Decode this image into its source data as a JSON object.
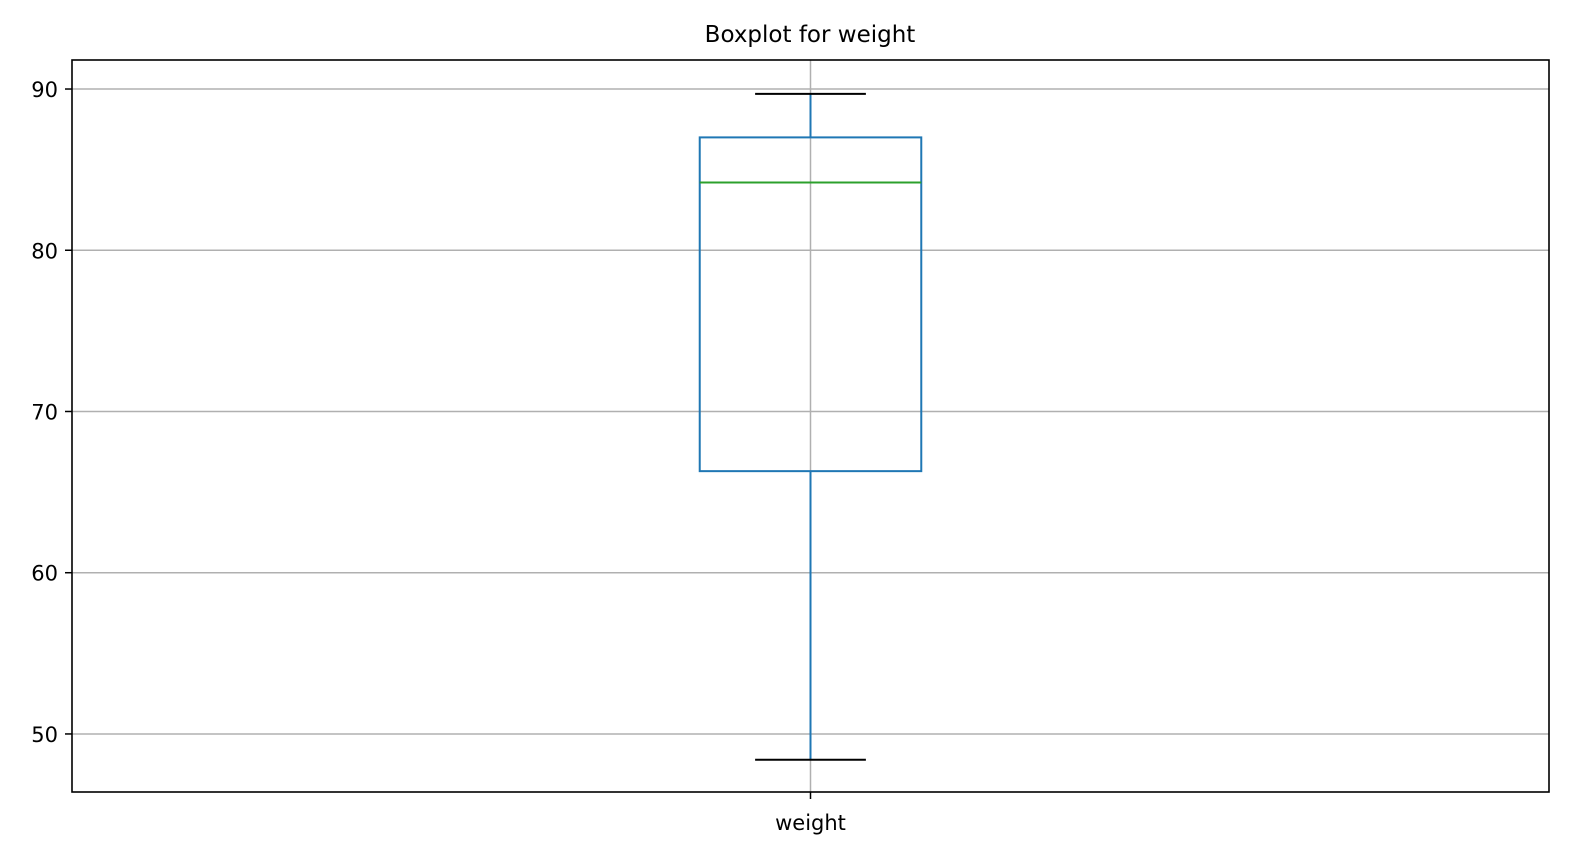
{
  "chart_data": {
    "type": "boxplot",
    "title": "Boxplot for weight",
    "xlabel": "",
    "ylabel": "",
    "categories": [
      "weight"
    ],
    "boxes": [
      {
        "category": "weight",
        "whisker_low": 48.4,
        "q1": 66.3,
        "median": 84.2,
        "q3": 87.0,
        "whisker_high": 89.7
      }
    ],
    "ylim": [
      46.4,
      91.8
    ],
    "yticks": [
      50,
      60,
      70,
      80,
      90
    ],
    "grid": true,
    "colors": {
      "box": "#1f77b4",
      "median": "#2ca02c",
      "caps": "#000000",
      "grid": "#b0b0b0",
      "frame": "#000000"
    }
  }
}
